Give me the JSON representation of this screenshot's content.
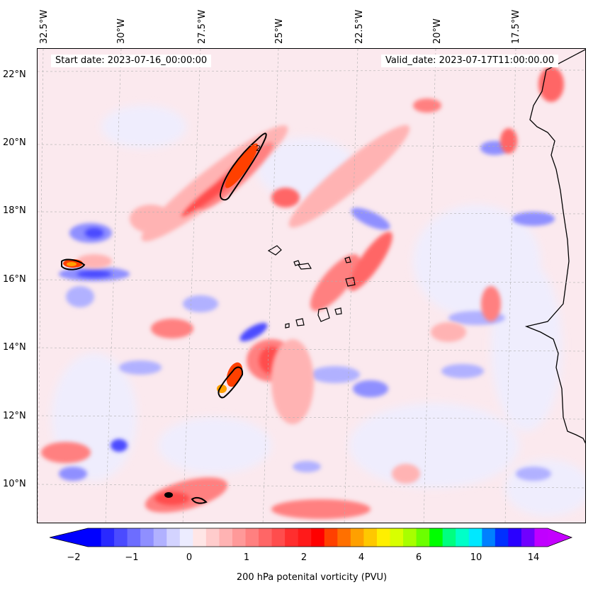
{
  "map": {
    "start_label": "Start date: 2023-07-16_00:00:00",
    "valid_label": "Valid_date: 2023-07-17T11:00:00.00",
    "lon_labels": [
      "32.5°W",
      "30°W",
      "27.5°W",
      "25°W",
      "22.5°W",
      "20°W",
      "17.5°W"
    ],
    "lat_labels": [
      "22°N",
      "20°N",
      "18°N",
      "16°N",
      "14°N",
      "12°N",
      "10°N"
    ],
    "contour_label": "2",
    "field": "200 hPa potential vorticity",
    "coastline_color": "#000000"
  },
  "colorbar": {
    "label": "200 hPa potenital vorticity (PVU)",
    "tick_labels": [
      "−2",
      "−1",
      "0",
      "1",
      "2",
      "4",
      "6",
      "10",
      "14"
    ],
    "colors": [
      "#0000ff",
      "#2929ff",
      "#4b4bff",
      "#6d6dff",
      "#8f8fff",
      "#b1b1ff",
      "#d3d3ff",
      "#ececff",
      "#ffe6e6",
      "#ffcccc",
      "#ffb3b3",
      "#ff9999",
      "#ff8080",
      "#ff6666",
      "#ff4d4d",
      "#ff2e2e",
      "#ff1a1a",
      "#ff0000",
      "#ff4000",
      "#ff7000",
      "#ffa000",
      "#ffc800",
      "#ffef00",
      "#d8ff00",
      "#a8ff00",
      "#6cff00",
      "#00ff00",
      "#00ff80",
      "#00ffc8",
      "#00e8ff",
      "#0080ff",
      "#0030ff",
      "#2a00ff",
      "#7000ff",
      "#c000ff"
    ],
    "under_color": "#0000ff",
    "over_color": "#c400ff"
  }
}
